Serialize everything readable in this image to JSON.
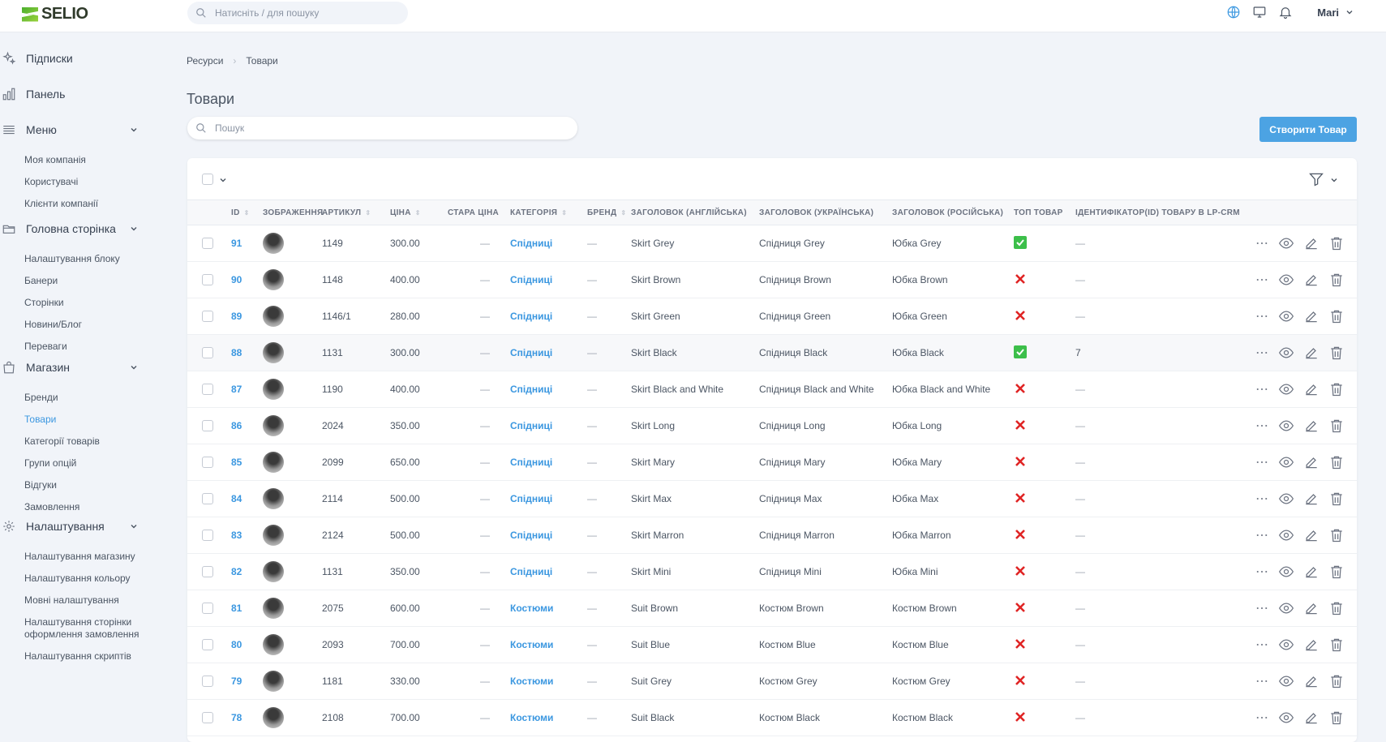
{
  "header": {
    "logo": "SELIO",
    "search_placeholder": "Натисніть / для пошуку",
    "user": "Mari"
  },
  "sidebar": {
    "groups": [
      {
        "label": "Підписки",
        "icon": "sparkles-icon",
        "items": []
      },
      {
        "label": "Панель",
        "icon": "chart-bar-icon",
        "items": []
      },
      {
        "label": "Меню",
        "icon": "menu-icon",
        "items": [
          "Моя компанія",
          "Користувачі",
          "Клієнти компанії"
        ]
      },
      {
        "label": "Головна сторінка",
        "icon": "folder-icon",
        "items": [
          "Налаштування блоку",
          "Банери",
          "Сторінки",
          "Новини/Блог",
          "Переваги"
        ]
      },
      {
        "label": "Магазин",
        "icon": "shopping-bag-icon",
        "items": [
          "Бренди",
          "Товари",
          "Категорії товарів",
          "Групи опцій",
          "Відгуки",
          "Замовлення"
        ]
      },
      {
        "label": "Налаштування",
        "icon": "gear-icon",
        "items": [
          "Налаштування магазину",
          "Налаштування кольору",
          "Мовні налаштування",
          "Налаштування сторінки оформлення замовлення",
          "Налаштування скриптів"
        ]
      }
    ],
    "active": "Товари"
  },
  "breadcrumb": [
    "Ресурси",
    "Товари"
  ],
  "page": {
    "title": "Товари",
    "search_placeholder": "Пошук",
    "create_label": "Створити Товар"
  },
  "table": {
    "columns": [
      "ID",
      "ЗОБРАЖЕННЯ",
      "АРТИКУЛ",
      "ЦІНА",
      "СТАРА ЦІНА",
      "КАТЕГОРІЯ",
      "БРЕНД",
      "ЗАГОЛОВОК (АНГЛІЙСЬКА)",
      "ЗАГОЛОВОК (УКРАЇНСЬКА)",
      "ЗАГОЛОВОК (РОСІЙСЬКА)",
      "ТОП ТОВАР",
      "ІДЕНТИФІКАТОР(ID) ТОВАРУ В LP-CRM"
    ],
    "rows": [
      {
        "id": "91",
        "sku": "1149",
        "price": "300.00",
        "old": "—",
        "cat": "Спідниці",
        "brand": "—",
        "en": "Skirt Grey",
        "ua": "Спідниця Grey",
        "ru": "Юбка Grey",
        "top": true,
        "lp": "—"
      },
      {
        "id": "90",
        "sku": "1148",
        "price": "400.00",
        "old": "—",
        "cat": "Спідниці",
        "brand": "—",
        "en": "Skirt Brown",
        "ua": "Спідниця Brown",
        "ru": "Юбка Brown",
        "top": false,
        "lp": "—"
      },
      {
        "id": "89",
        "sku": "1146/1",
        "price": "280.00",
        "old": "—",
        "cat": "Спідниці",
        "brand": "—",
        "en": "Skirt Green",
        "ua": "Спідниця Green",
        "ru": "Юбка Green",
        "top": false,
        "lp": "—"
      },
      {
        "id": "88",
        "sku": "1131",
        "price": "300.00",
        "old": "—",
        "cat": "Спідниці",
        "brand": "—",
        "en": "Skirt Black",
        "ua": "Спідниця Black",
        "ru": "Юбка Black",
        "top": true,
        "lp": "7"
      },
      {
        "id": "87",
        "sku": "1190",
        "price": "400.00",
        "old": "—",
        "cat": "Спідниці",
        "brand": "—",
        "en": "Skirt Black and White",
        "ua": "Спідниця Black and White",
        "ru": "Юбка Black and White",
        "top": false,
        "lp": "—"
      },
      {
        "id": "86",
        "sku": "2024",
        "price": "350.00",
        "old": "—",
        "cat": "Спідниці",
        "brand": "—",
        "en": "Skirt Long",
        "ua": "Спідниця Long",
        "ru": "Юбка Long",
        "top": false,
        "lp": "—"
      },
      {
        "id": "85",
        "sku": "2099",
        "price": "650.00",
        "old": "—",
        "cat": "Спідниці",
        "brand": "—",
        "en": "Skirt Mary",
        "ua": "Спідниця Mary",
        "ru": "Юбка Mary",
        "top": false,
        "lp": "—"
      },
      {
        "id": "84",
        "sku": "2114",
        "price": "500.00",
        "old": "—",
        "cat": "Спідниці",
        "brand": "—",
        "en": "Skirt Max",
        "ua": "Спідниця Max",
        "ru": "Юбка Max",
        "top": false,
        "lp": "—"
      },
      {
        "id": "83",
        "sku": "2124",
        "price": "500.00",
        "old": "—",
        "cat": "Спідниці",
        "brand": "—",
        "en": "Skirt Marron",
        "ua": "Спідниця Marron",
        "ru": "Юбка Marron",
        "top": false,
        "lp": "—"
      },
      {
        "id": "82",
        "sku": "1131",
        "price": "350.00",
        "old": "—",
        "cat": "Спідниці",
        "brand": "—",
        "en": "Skirt Mini",
        "ua": "Спідниця Mini",
        "ru": "Юбка Mini",
        "top": false,
        "lp": "—"
      },
      {
        "id": "81",
        "sku": "2075",
        "price": "600.00",
        "old": "—",
        "cat": "Костюми",
        "brand": "—",
        "en": "Suit Brown",
        "ua": "Костюм Brown",
        "ru": "Костюм Brown",
        "top": false,
        "lp": "—"
      },
      {
        "id": "80",
        "sku": "2093",
        "price": "700.00",
        "old": "—",
        "cat": "Костюми",
        "brand": "—",
        "en": "Suit Blue",
        "ua": "Костюм Blue",
        "ru": "Костюм Blue",
        "top": false,
        "lp": "—"
      },
      {
        "id": "79",
        "sku": "1181",
        "price": "330.00",
        "old": "—",
        "cat": "Костюми",
        "brand": "—",
        "en": "Suit Grey",
        "ua": "Костюм Grey",
        "ru": "Костюм Grey",
        "top": false,
        "lp": "—"
      },
      {
        "id": "78",
        "sku": "2108",
        "price": "700.00",
        "old": "—",
        "cat": "Костюми",
        "brand": "—",
        "en": "Suit Black",
        "ua": "Костюм Black",
        "ru": "Костюм Black",
        "top": false,
        "lp": "—"
      }
    ],
    "highlighted_row": "88"
  },
  "colors": {
    "accent": "#3b97e0",
    "button": "#4ca3e3",
    "top_yes": "#3cbf4a",
    "top_no": "#e02424"
  }
}
